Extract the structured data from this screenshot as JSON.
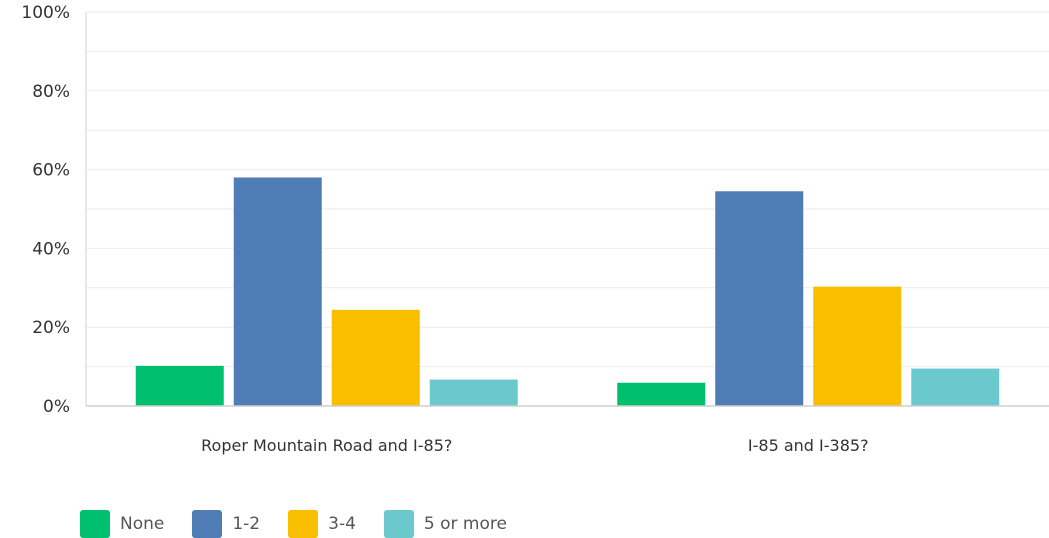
{
  "chart_data": {
    "type": "bar",
    "categories": [
      "Roper Mountain Road and I-85?",
      "I-85 and I-385?"
    ],
    "series": [
      {
        "name": "None",
        "color": "#00bf6f",
        "values": [
          10.2,
          5.9
        ]
      },
      {
        "name": "1-2",
        "color": "#507cb6",
        "values": [
          58.0,
          54.5
        ]
      },
      {
        "name": "3-4",
        "color": "#f9be00",
        "values": [
          24.4,
          30.3
        ]
      },
      {
        "name": "5 or more",
        "color": "#6bc8cd",
        "values": [
          6.7,
          9.5
        ]
      }
    ],
    "ylim": [
      0,
      100
    ],
    "y_ticks": [
      "0%",
      "20%",
      "40%",
      "60%",
      "80%",
      "100%"
    ],
    "grid": true,
    "legend_position": "bottom-left"
  }
}
